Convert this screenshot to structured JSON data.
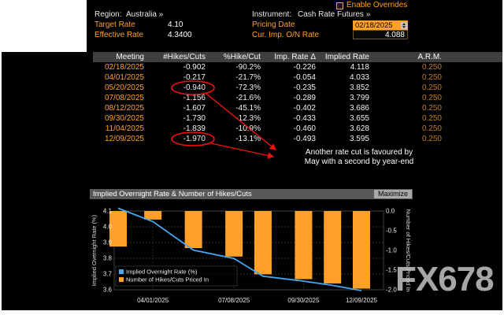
{
  "top": {
    "enable_overrides": "Enable Overrides",
    "region_label": "Region:",
    "region_value": "Australia »",
    "instrument_label": "Instrument:",
    "instrument_value": "Cash Rate Futures »",
    "target_rate_label": "Target Rate",
    "target_rate_value": "4.10",
    "pricing_date_label": "Pricing Date",
    "pricing_date_value": "02/18/2025",
    "effective_rate_label": "Effective Rate",
    "effective_rate_value": "4.3400",
    "cur_imp_on_label": "Cur. Imp. O/N Rate",
    "cur_imp_on_value": "4.088"
  },
  "table": {
    "headers": [
      "Meeting",
      "#Hikes/Cuts",
      "%Hike/Cut",
      "Imp. Rate Δ",
      "Implied Rate",
      "A.R.M."
    ],
    "rows": [
      [
        "02/18/2025",
        "-0.902",
        "-90.2%",
        "-0.226",
        "4.118",
        "0.250"
      ],
      [
        "04/01/2025",
        "-0.217",
        "-21.7%",
        "-0.054",
        "4.033",
        "0.250"
      ],
      [
        "05/20/2025",
        "-0.940",
        "-72.3%",
        "-0.235",
        "3.852",
        "0.250"
      ],
      [
        "07/08/2025",
        "-1.156",
        "-21.6%",
        "-0.289",
        "3.799",
        "0.250"
      ],
      [
        "08/12/2025",
        "-1.607",
        "-45.1%",
        "-0.402",
        "3.686",
        "0.250"
      ],
      [
        "09/30/2025",
        "-1.730",
        "-12.3%",
        "-0.433",
        "3.655",
        "0.250"
      ],
      [
        "11/04/2025",
        "-1.839",
        "-10.9%",
        "-0.460",
        "3.628",
        "0.250"
      ],
      [
        "12/09/2025",
        "-1.970",
        "-13.1%",
        "-0.493",
        "3.595",
        "0.250"
      ]
    ],
    "circled_rows": [
      2,
      7
    ]
  },
  "annotation": {
    "line1": "Another rate cut is favoured by",
    "line2": "May with a second by year-end",
    "color": "#ee1111"
  },
  "chart": {
    "title": "Implied Overnight Rate & Number of Hikes/Cuts",
    "maximize_label": "Maximize"
  },
  "chart_data": {
    "type": "bar",
    "subtype": "dual-axis bar+line",
    "title": "Implied Overnight Rate & Number of Hikes/Cuts",
    "x_dates": [
      "02/18/2025",
      "04/01/2025",
      "05/20/2025",
      "07/08/2025",
      "08/12/2025",
      "09/30/2025",
      "11/04/2025",
      "12/09/2025"
    ],
    "x_days": [
      0,
      42,
      91,
      140,
      175,
      224,
      259,
      294
    ],
    "x_ticks": [
      {
        "label": "04/01/2025",
        "day": 42
      },
      {
        "label": "07/08/2025",
        "day": 140
      },
      {
        "label": "09/30/2025",
        "day": 224
      },
      {
        "label": "12/09/2025",
        "day": 294
      }
    ],
    "series": [
      {
        "name": "Implied Overnight Rate (%)",
        "type": "line",
        "axis": "left",
        "color": "#45a7f0",
        "values": [
          4.118,
          4.033,
          3.852,
          3.799,
          3.686,
          3.655,
          3.628,
          3.595
        ]
      },
      {
        "name": "Number of Hikes/Cuts Priced In",
        "type": "bar",
        "axis": "right",
        "color": "#ffa028",
        "values": [
          -0.902,
          -0.217,
          -0.94,
          -1.156,
          -1.607,
          -1.73,
          -1.839,
          -1.97
        ]
      }
    ],
    "left_axis": {
      "title": "Implied Overnight Rate (%)",
      "tick_labels": [
        "4.1",
        "4.0",
        "3.9",
        "3.8",
        "3.7",
        "3.6"
      ],
      "min": 3.6,
      "max": 4.1
    },
    "right_axis": {
      "title": "Number of Hikes/Cuts Priced In",
      "tick_labels": [
        "0.0",
        "-0.5",
        "-1.0",
        "-1.5",
        "-2.0"
      ],
      "min": -2.0,
      "max": 0.0
    },
    "legend_position": "bottom-left",
    "grid": true
  },
  "watermark": "FX678"
}
